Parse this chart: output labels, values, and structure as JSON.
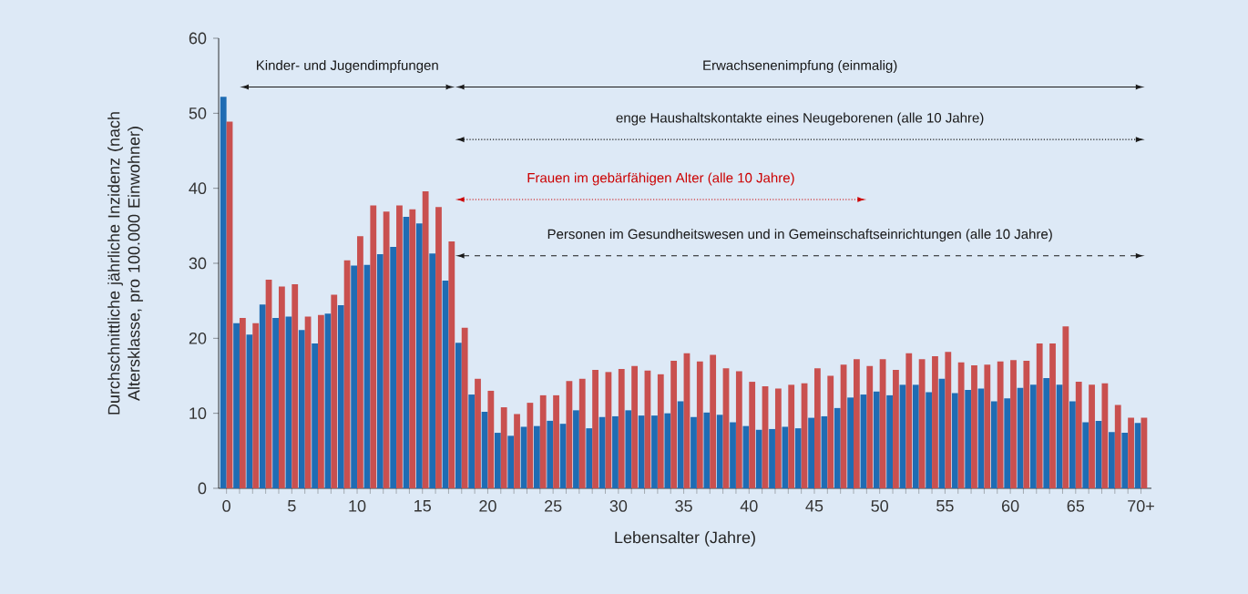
{
  "chart_data": {
    "type": "bar",
    "xlabel": "Lebensalter (Jahre)",
    "ylabel": "Durchschnittliche jährliche Inzidenz (nach Altersklasse, pro 100.000 Einwohner)",
    "categories": [
      "0",
      null,
      null,
      null,
      null,
      "5",
      null,
      null,
      null,
      null,
      "10",
      null,
      null,
      null,
      null,
      "15",
      null,
      null,
      null,
      null,
      "20",
      null,
      null,
      null,
      null,
      "25",
      null,
      null,
      null,
      null,
      "30",
      null,
      null,
      null,
      null,
      "35",
      null,
      null,
      null,
      null,
      "40",
      null,
      null,
      null,
      null,
      "45",
      null,
      null,
      null,
      null,
      "50",
      null,
      null,
      null,
      null,
      "55",
      null,
      null,
      null,
      null,
      "60",
      null,
      null,
      null,
      null,
      "65",
      null,
      null,
      null,
      null,
      "70+"
    ],
    "series": [
      {
        "color": "#1f6cb3",
        "values": [
          52.2,
          22.0,
          20.5,
          24.5,
          22.7,
          22.9,
          21.1,
          19.3,
          23.3,
          24.4,
          29.7,
          29.8,
          31.2,
          32.2,
          36.2,
          35.3,
          31.3,
          27.7,
          19.4,
          12.5,
          10.2,
          7.4,
          7.0,
          8.2,
          8.3,
          9.0,
          8.6,
          10.4,
          8.0,
          9.5,
          9.6,
          10.4,
          9.7,
          9.7,
          10.0,
          11.6,
          9.5,
          10.1,
          9.8,
          8.8,
          8.3,
          7.8,
          7.9,
          8.2,
          8.0,
          9.4,
          9.6,
          10.7,
          12.1,
          12.5,
          12.9,
          12.4,
          13.8,
          13.8,
          12.8,
          14.6,
          12.7,
          13.1,
          13.3,
          11.6,
          12.0,
          13.4,
          13.8,
          14.7,
          13.8,
          11.6,
          8.8,
          9.0,
          7.5,
          7.4,
          8.7
        ]
      },
      {
        "color": "#c9504f",
        "values": [
          48.9,
          22.7,
          22.0,
          27.8,
          26.9,
          27.2,
          22.9,
          23.1,
          25.8,
          30.4,
          33.6,
          37.7,
          36.9,
          37.7,
          37.2,
          39.6,
          37.5,
          32.9,
          21.4,
          14.6,
          13.0,
          10.8,
          9.9,
          11.4,
          12.4,
          12.4,
          14.3,
          14.6,
          15.8,
          15.5,
          15.9,
          16.3,
          15.7,
          15.2,
          17.0,
          18.0,
          16.9,
          17.8,
          16.0,
          15.6,
          14.2,
          13.6,
          13.3,
          13.8,
          14.0,
          16.0,
          15.0,
          16.5,
          17.2,
          16.3,
          17.2,
          15.8,
          18.0,
          17.2,
          17.6,
          18.2,
          16.8,
          16.4,
          16.5,
          16.9,
          17.1,
          17.0,
          19.3,
          19.3,
          21.6,
          14.2,
          13.8,
          14.0,
          11.1,
          9.4,
          9.4
        ]
      }
    ],
    "ylim": [
      0,
      60
    ],
    "yticks": [
      0,
      10,
      20,
      30,
      40,
      50,
      60
    ],
    "grid": false,
    "annotations": [
      "Kinder- und Jugendimpfungen",
      "Erwachsenenimpfung (einmalig)",
      "enge Haushaltskontakte eines Neugeborenen (alle 10 Jahre)",
      "Frauen im gebärfähigen Alter (alle 10 Jahre)",
      "Personen im Gesundheitswesen und in Gemeinschaftseinrichtungen (alle 10 Jahre)"
    ]
  }
}
